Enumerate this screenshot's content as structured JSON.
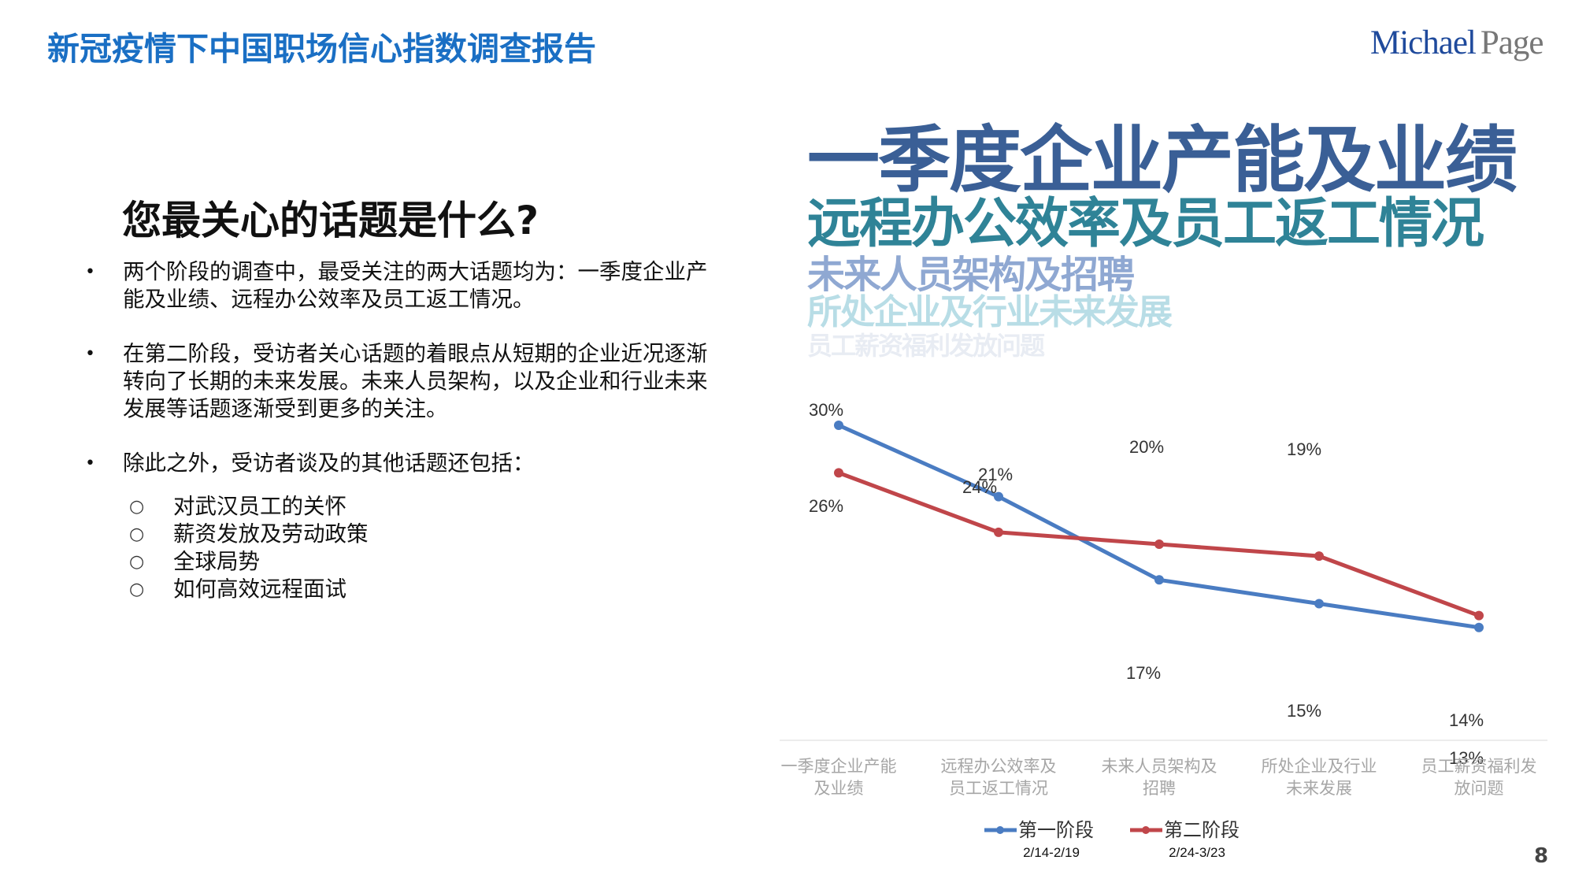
{
  "header": {
    "title": "新冠疫情下中国职场信心指数调查报告",
    "logo_part1": "Michael",
    "logo_part2": "Page"
  },
  "section": {
    "title": "您最关心的话题是什么?",
    "bullets": [
      {
        "text": "两个阶段的调查中，最受关注的两大话题均为：一季度企业产能及业绩、远程办公效率及员工返工情况。"
      },
      {
        "text": "在第二阶段，受访者关心话题的着眼点从短期的企业近况逐渐转向了长期的未来发展。未来人员架构，以及企业和行业未来发展等话题逐渐受到更多的关注。"
      },
      {
        "text": "除此之外，受访者谈及的其他话题还包括："
      }
    ],
    "subitems": [
      "对武汉员工的关怀",
      "薪资发放及劳动政策",
      "全球局势",
      "如何高效远程面试"
    ],
    "bullet_glyph": "•",
    "sub_glyph": "○"
  },
  "word_cloud": [
    {
      "text": "一季度企业产能及业绩",
      "color": "#3a5f96"
    },
    {
      "text": "远程办公效率及员工返工情况",
      "color": "#2f8397"
    },
    {
      "text": "未来人员架构及招聘",
      "color": "#8fa8d2"
    },
    {
      "text": "所处企业及行业未来发展",
      "color": "#b8dde6"
    },
    {
      "text": "员工薪资福利发放问题",
      "color": "#e8ecf3"
    }
  ],
  "chart_data": {
    "type": "line",
    "title": "",
    "categories": [
      "一季度企业产能及业绩",
      "远程办公效率及员工返工情况",
      "未来人员架构及招聘",
      "所处企业及行业未来发展",
      "员工薪资福利发放问题"
    ],
    "category_labels": [
      [
        "一季度企业产能",
        "及业绩"
      ],
      [
        "远程办公效率及",
        "员工返工情况"
      ],
      [
        "未来人员架构及",
        "招聘"
      ],
      [
        "所处企业及行业",
        "未来发展"
      ],
      [
        "员工薪资福利发",
        "放问题"
      ]
    ],
    "series": [
      {
        "name": "第一阶段",
        "period": "2/14-2/19",
        "color": "#4a7cc2",
        "values": [
          30,
          24,
          17,
          15,
          13
        ],
        "labels": [
          "30%",
          "24%",
          "17%",
          "15%",
          "13%"
        ]
      },
      {
        "name": "第二阶段",
        "period": "2/24-3/23",
        "color": "#c0464a",
        "values": [
          26,
          21,
          20,
          19,
          14
        ],
        "labels": [
          "26%",
          "21%",
          "20%",
          "19%",
          "14%"
        ]
      }
    ],
    "xlabel": "",
    "ylabel": "",
    "grid": false,
    "legend_position": "bottom"
  },
  "page_number": "8"
}
